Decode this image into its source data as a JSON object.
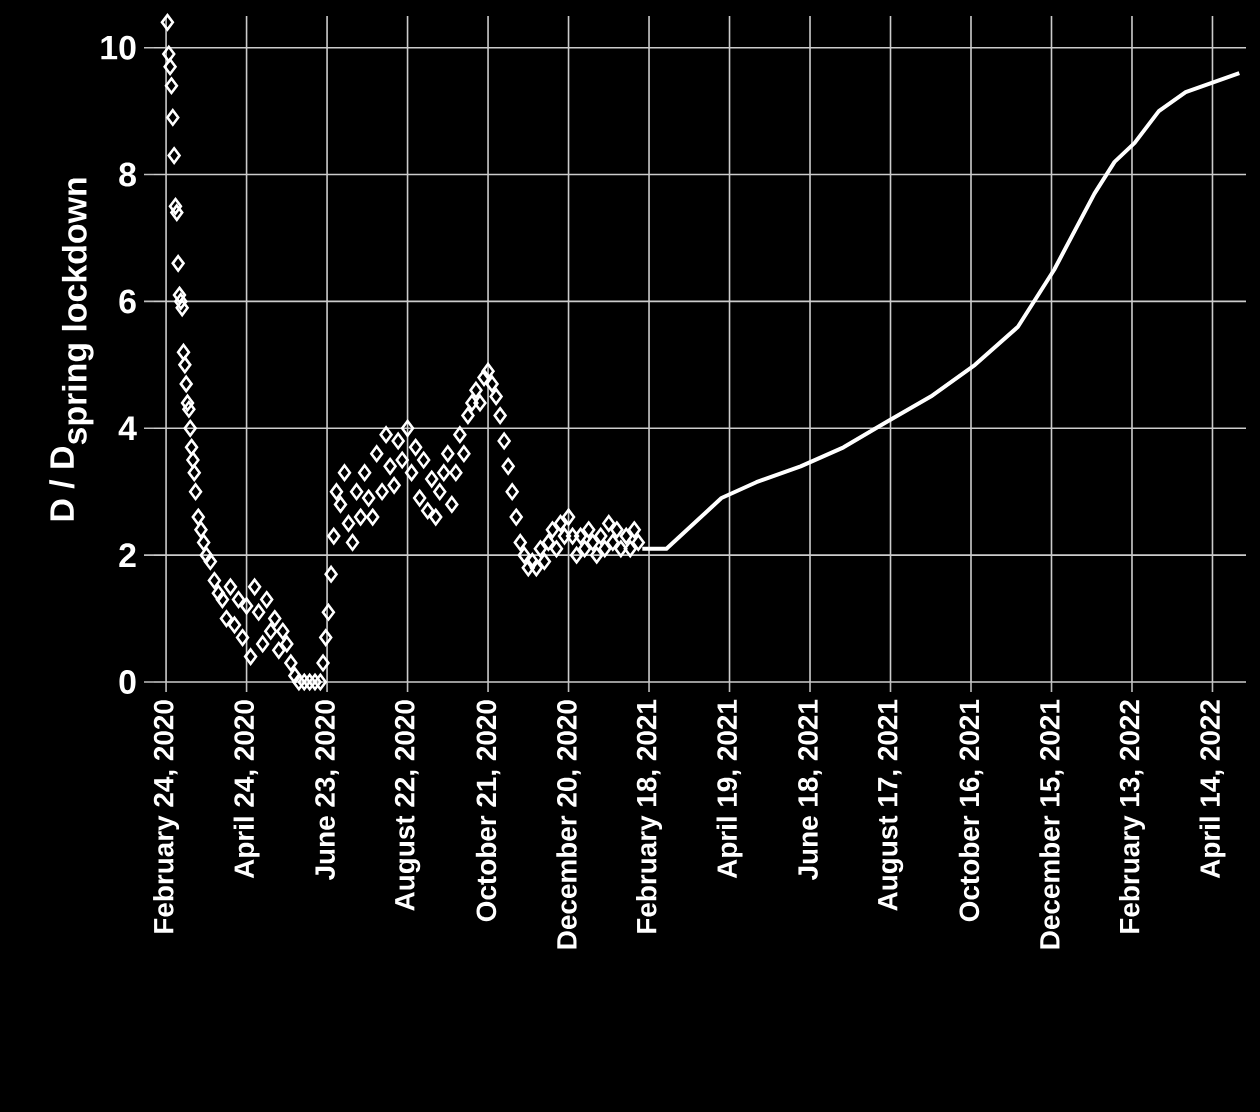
{
  "chart_data": {
    "type": "line",
    "ylabel": "\\textbf{D / D}_{\\textbf{spring lockdown}}",
    "xlim": [
      "2020-02-15",
      "2022-05-09"
    ],
    "xticks": [
      {
        "value": "2020-02-24",
        "label": "February 24, 2020"
      },
      {
        "value": "2020-04-24",
        "label": "April 24, 2020"
      },
      {
        "value": "2020-06-23",
        "label": "June 23, 2020"
      },
      {
        "value": "2020-08-22",
        "label": "August 22, 2020"
      },
      {
        "value": "2020-10-21",
        "label": "October 21, 2020"
      },
      {
        "value": "2020-12-20",
        "label": "December 20, 2020"
      },
      {
        "value": "2021-02-18",
        "label": "February 18, 2021"
      },
      {
        "value": "2021-04-19",
        "label": "April 19, 2021"
      },
      {
        "value": "2021-06-18",
        "label": "June 18, 2021"
      },
      {
        "value": "2021-08-17",
        "label": "August 17, 2021"
      },
      {
        "value": "2021-10-16",
        "label": "October 16, 2021"
      },
      {
        "value": "2021-12-15",
        "label": "December 15, 2021"
      },
      {
        "value": "2022-02-13",
        "label": "February 13, 2022"
      },
      {
        "value": "2022-04-14",
        "label": "April 14, 2022"
      }
    ],
    "ylim": [
      0,
      10.5
    ],
    "yticks": [
      0,
      2,
      4,
      6,
      8,
      10
    ],
    "grid": true,
    "series": [
      {
        "type": "scatter",
        "marker": "diamond",
        "color": "#ffffff",
        "x": [
          "2020-02-25",
          "2020-02-26",
          "2020-02-27",
          "2020-02-28",
          "2020-02-29",
          "2020-03-01",
          "2020-03-02",
          "2020-03-03",
          "2020-03-04",
          "2020-03-05",
          "2020-03-06",
          "2020-03-07",
          "2020-03-08",
          "2020-03-09",
          "2020-03-10",
          "2020-03-11",
          "2020-03-12",
          "2020-03-13",
          "2020-03-14",
          "2020-03-15",
          "2020-03-16",
          "2020-03-17",
          "2020-03-19",
          "2020-03-21",
          "2020-03-23",
          "2020-03-25",
          "2020-03-28",
          "2020-03-31",
          "2020-04-03",
          "2020-04-06",
          "2020-04-09",
          "2020-04-12",
          "2020-04-15",
          "2020-04-18",
          "2020-04-21",
          "2020-04-24",
          "2020-04-27",
          "2020-04-30",
          "2020-05-03",
          "2020-05-06",
          "2020-05-09",
          "2020-05-12",
          "2020-05-15",
          "2020-05-18",
          "2020-05-21",
          "2020-05-24",
          "2020-05-27",
          "2020-05-30",
          "2020-06-02",
          "2020-06-06",
          "2020-06-10",
          "2020-06-14",
          "2020-06-18",
          "2020-06-20",
          "2020-06-22",
          "2020-06-24",
          "2020-06-26",
          "2020-06-28",
          "2020-06-30",
          "2020-07-03",
          "2020-07-06",
          "2020-07-09",
          "2020-07-12",
          "2020-07-15",
          "2020-07-18",
          "2020-07-21",
          "2020-07-24",
          "2020-07-27",
          "2020-07-30",
          "2020-08-03",
          "2020-08-06",
          "2020-08-09",
          "2020-08-12",
          "2020-08-15",
          "2020-08-18",
          "2020-08-22",
          "2020-08-25",
          "2020-08-28",
          "2020-08-31",
          "2020-09-03",
          "2020-09-06",
          "2020-09-09",
          "2020-09-12",
          "2020-09-15",
          "2020-09-18",
          "2020-09-21",
          "2020-09-24",
          "2020-09-27",
          "2020-09-30",
          "2020-10-03",
          "2020-10-06",
          "2020-10-09",
          "2020-10-12",
          "2020-10-15",
          "2020-10-18",
          "2020-10-21",
          "2020-10-24",
          "2020-10-27",
          "2020-10-30",
          "2020-11-02",
          "2020-11-05",
          "2020-11-08",
          "2020-11-11",
          "2020-11-14",
          "2020-11-17",
          "2020-11-20",
          "2020-11-23",
          "2020-11-26",
          "2020-11-29",
          "2020-12-02",
          "2020-12-05",
          "2020-12-08",
          "2020-12-11",
          "2020-12-14",
          "2020-12-17",
          "2020-12-20",
          "2020-12-23",
          "2020-12-26",
          "2020-12-29",
          "2021-01-01",
          "2021-01-04",
          "2021-01-07",
          "2021-01-10",
          "2021-01-13",
          "2021-01-16",
          "2021-01-19",
          "2021-01-22",
          "2021-01-25",
          "2021-01-28",
          "2021-02-01",
          "2021-02-04",
          "2021-02-07",
          "2021-02-10"
        ],
        "values": [
          10.4,
          9.9,
          9.7,
          9.4,
          8.9,
          8.3,
          7.5,
          7.4,
          6.6,
          6.1,
          6.0,
          5.9,
          5.2,
          5.0,
          4.7,
          4.4,
          4.3,
          4.0,
          3.7,
          3.5,
          3.3,
          3.0,
          2.6,
          2.4,
          2.2,
          2.0,
          1.9,
          1.6,
          1.4,
          1.3,
          1.0,
          1.5,
          0.9,
          1.3,
          0.7,
          1.2,
          0.4,
          1.5,
          1.1,
          0.6,
          1.3,
          0.8,
          1.0,
          0.5,
          0.8,
          0.6,
          0.3,
          0.1,
          0.0,
          0.0,
          0.0,
          0.0,
          0.0,
          0.3,
          0.7,
          1.1,
          1.7,
          2.3,
          3.0,
          2.8,
          3.3,
          2.5,
          2.2,
          3.0,
          2.6,
          3.3,
          2.9,
          2.6,
          3.6,
          3.0,
          3.9,
          3.4,
          3.1,
          3.8,
          3.5,
          4.0,
          3.3,
          3.7,
          2.9,
          3.5,
          2.7,
          3.2,
          2.6,
          3.0,
          3.3,
          3.6,
          2.8,
          3.3,
          3.9,
          3.6,
          4.2,
          4.4,
          4.6,
          4.4,
          4.8,
          4.9,
          4.7,
          4.5,
          4.2,
          3.8,
          3.4,
          3.0,
          2.6,
          2.2,
          2.0,
          1.8,
          1.9,
          1.8,
          2.1,
          1.9,
          2.2,
          2.4,
          2.1,
          2.5,
          2.3,
          2.6,
          2.3,
          2.0,
          2.3,
          2.1,
          2.4,
          2.2,
          2.0,
          2.3,
          2.1,
          2.5,
          2.2,
          2.4,
          2.1,
          2.3,
          2.1,
          2.4,
          2.2
        ]
      },
      {
        "marker": "none",
        "color": "#ffffff",
        "x": [
          "2021-02-13",
          "2021-03-03",
          "2021-04-13",
          "2021-05-09",
          "2021-06-11",
          "2021-07-13",
          "2021-08-14",
          "2021-09-16",
          "2021-10-19",
          "2021-11-20",
          "2021-12-17",
          "2022-01-01",
          "2022-01-16",
          "2022-01-31",
          "2022-02-15",
          "2022-03-05",
          "2022-03-25",
          "2022-04-14",
          "2022-05-04"
        ],
        "values": [
          2.1,
          2.1,
          2.9,
          3.15,
          3.4,
          3.7,
          4.1,
          4.5,
          5.0,
          5.6,
          6.5,
          7.1,
          7.7,
          8.2,
          8.5,
          9.0,
          9.3,
          9.45,
          9.6
        ]
      }
    ]
  }
}
